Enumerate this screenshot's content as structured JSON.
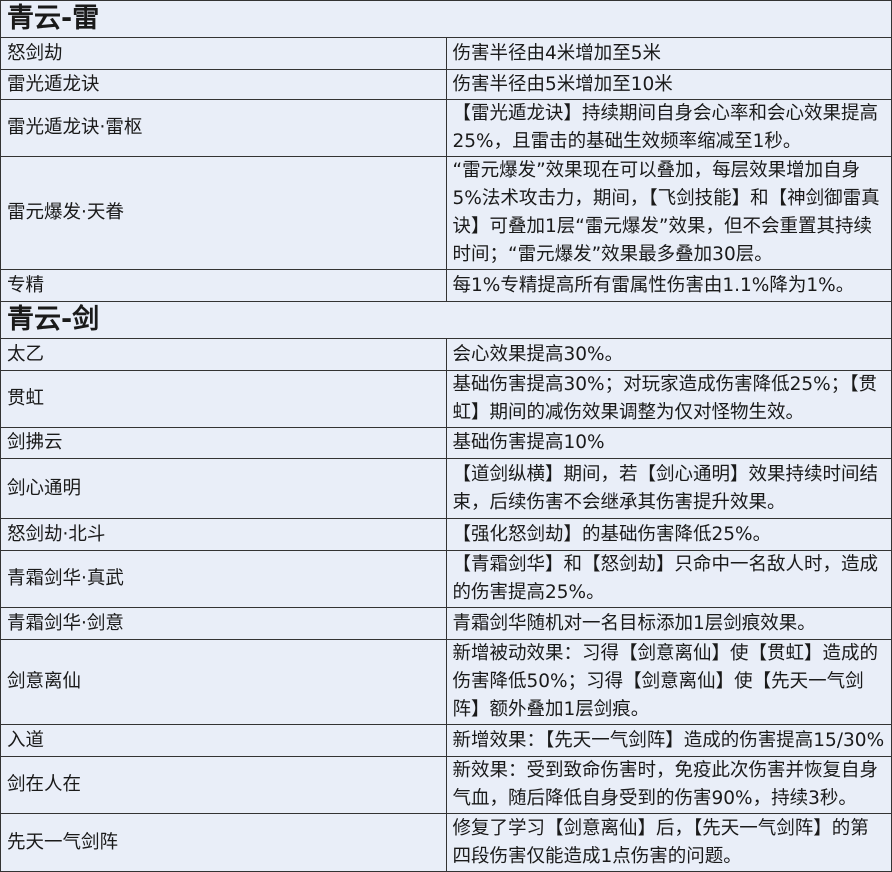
{
  "sections": [
    {
      "title": "青云-雷",
      "rows": [
        [
          "怒剑劫",
          "伤害半径由4米增加至5米"
        ],
        [
          "雷光遁龙诀",
          "伤害半径由5米增加至10米"
        ],
        [
          "雷光遁龙诀·雷枢",
          "【雷光遁龙诀】持续期间自身会心率和会心效果提高25%，且雷击的基础生效频率缩减至1秒。"
        ],
        [
          "雷元爆发·天眷",
          "“雷元爆发”效果现在可以叠加，每层效果增加自身5%法术攻击力，期间，【飞剑技能】和【神剑御雷真诀】可叠加1层“雷元爆发”效果，但不会重置其持续时间；“雷元爆发”效果最多叠加30层。"
        ],
        [
          "专精",
          "每1%专精提高所有雷属性伤害由1.1%降为1%。"
        ]
      ]
    },
    {
      "title": "青云-剑",
      "rows": [
        [
          "太乙",
          "会心效果提高30%。"
        ],
        [
          "贯虹",
          "基础伤害提高30%；对玩家造成伤害降低25%；【贯虹】期间的减伤效果调整为仅对怪物生效。"
        ],
        [
          "剑拂云",
          "基础伤害提高10%"
        ],
        [
          "剑心通明",
          "【道剑纵横】期间，若【剑心通明】效果持续时间结束，后续伤害不会继承其伤害提升效果。"
        ],
        [
          "怒剑劫·北斗",
          "【强化怒剑劫】的基础伤害降低25%。"
        ],
        [
          "青霜剑华·真武",
          "【青霜剑华】和【怒剑劫】只命中一名敌人时，造成的伤害提高25%。"
        ],
        [
          "青霜剑华·剑意",
          "青霜剑华随机对一名目标添加1层剑痕效果。"
        ],
        [
          "剑意离仙",
          "新增被动效果：习得【剑意离仙】使【贯虹】造成的伤害降低50%；习得【剑意离仙】使【先天一气剑阵】额外叠加1层剑痕。"
        ],
        [
          "入道",
          "新增效果：【先天一气剑阵】造成的伤害提高15/30%"
        ],
        [
          "剑在人在",
          "新效果：受到致命伤害时，免疫此次伤害并恢复自身气血，随后降低自身受到的伤害90%，持续3秒。"
        ],
        [
          "先天一气剑阵",
          "修复了学习【剑意离仙】后，【先天一气剑阵】的第四段伤害仅能造成1点伤害的问题。"
        ]
      ]
    }
  ]
}
